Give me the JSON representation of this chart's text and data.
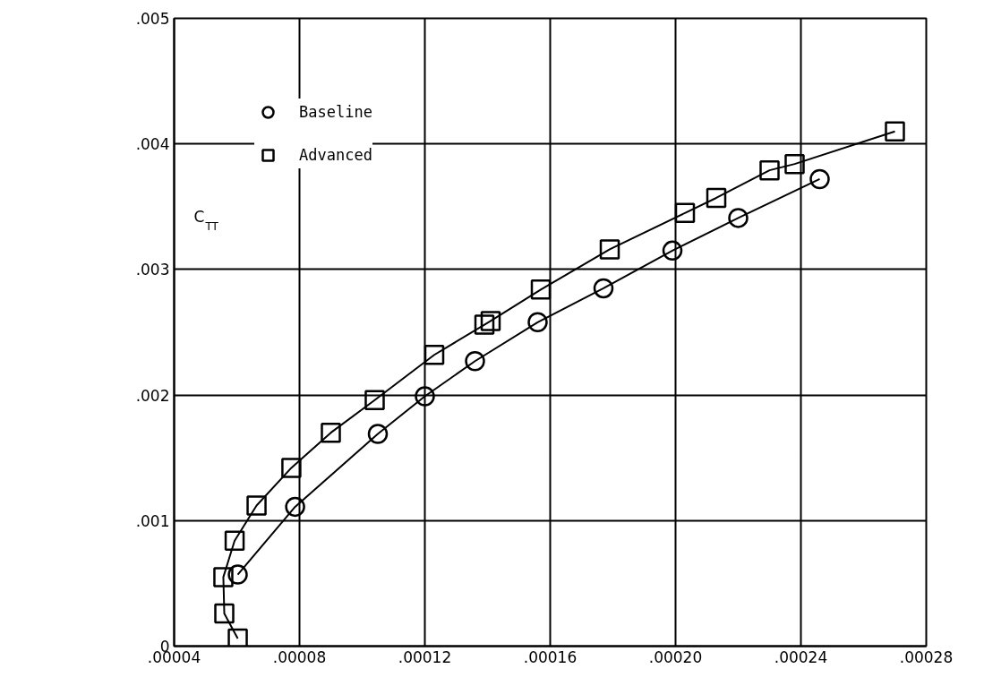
{
  "chart_data": {
    "type": "line",
    "ylabel": "C$_{TT}$",
    "xlim": [
      4e-05,
      0.00028
    ],
    "ylim": [
      0,
      0.005
    ],
    "xticks": [
      {
        "value": 4e-05,
        "label": ".00004"
      },
      {
        "value": 8e-05,
        "label": ".00008"
      },
      {
        "value": 0.00012,
        "label": ".00012"
      },
      {
        "value": 0.00016,
        "label": ".00016"
      },
      {
        "value": 0.0002,
        "label": ".00020"
      },
      {
        "value": 0.00024,
        "label": ".00024"
      },
      {
        "value": 0.00028,
        "label": ".00028"
      }
    ],
    "yticks": [
      0,
      {
        "value": 0.001,
        "label": ".001"
      },
      {
        "value": 0.002,
        "label": ".002"
      },
      {
        "value": 0.003,
        "label": ".003"
      },
      {
        "value": 0.004,
        "label": ".004"
      },
      {
        "value": 0.005,
        "label": ".005"
      }
    ],
    "grid": true,
    "legend": "top left",
    "series": [
      {
        "name": "Baseline",
        "color": "#000000",
        "marker": "circle",
        "x": [
          6.03e-05,
          7.86e-05,
          0.000105,
          0.00012,
          0.000136,
          0.000156,
          0.000177,
          0.000199,
          0.00022,
          0.000246
        ],
        "values": [
          0.00057,
          0.00111,
          0.00169,
          0.00199,
          0.00227,
          0.00258,
          0.00285,
          0.00315,
          0.00341,
          0.00372
        ]
      },
      {
        "name": "Advanced",
        "color": "#000000",
        "marker": "square",
        "x": [
          6.03e-05,
          5.6e-05,
          5.57e-05,
          5.93e-05,
          6.63e-05,
          7.74e-05,
          9e-05,
          0.000104,
          0.000123,
          0.000139,
          0.000141,
          0.000157,
          0.000179,
          0.000203,
          0.000213,
          0.00023,
          0.000238,
          0.00027
        ],
        "values": [
          6e-05,
          0.00026,
          0.00055,
          0.00084,
          0.00112,
          0.00142,
          0.0017,
          0.00196,
          0.00232,
          0.00256,
          0.00259,
          0.00284,
          0.00316,
          0.00345,
          0.00357,
          0.00379,
          0.00384,
          0.0041
        ]
      }
    ]
  }
}
